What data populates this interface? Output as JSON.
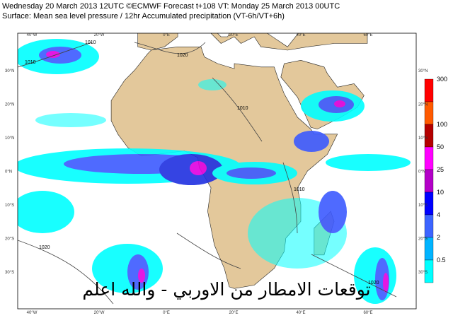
{
  "header": {
    "line1": "Wednesday 20 March 2013 12UTC ©ECMWF Forecast t+108 VT: Monday 25 March 2013 00UTC",
    "line2": "Surface: Mean sea level pressure / 12hr Accumulated precipitation (VT-6h/VT+6h)"
  },
  "lon_labels": [
    "40°W",
    "20°W",
    "0°E",
    "20°E",
    "40°E",
    "60°E"
  ],
  "lat_labels": [
    "30°N",
    "20°N",
    "10°N",
    "0°N",
    "10°S",
    "20°S",
    "30°S"
  ],
  "legend": {
    "labels": [
      "300",
      "100",
      "50",
      "25",
      "10",
      "4",
      "2",
      "0.5"
    ]
  },
  "isobar_labels": [
    "1010",
    "1010",
    "1020",
    "1010",
    "1010",
    "1020",
    "1020"
  ],
  "watermark": "توقعات الامطار من الاوربي - والله اعلم"
}
